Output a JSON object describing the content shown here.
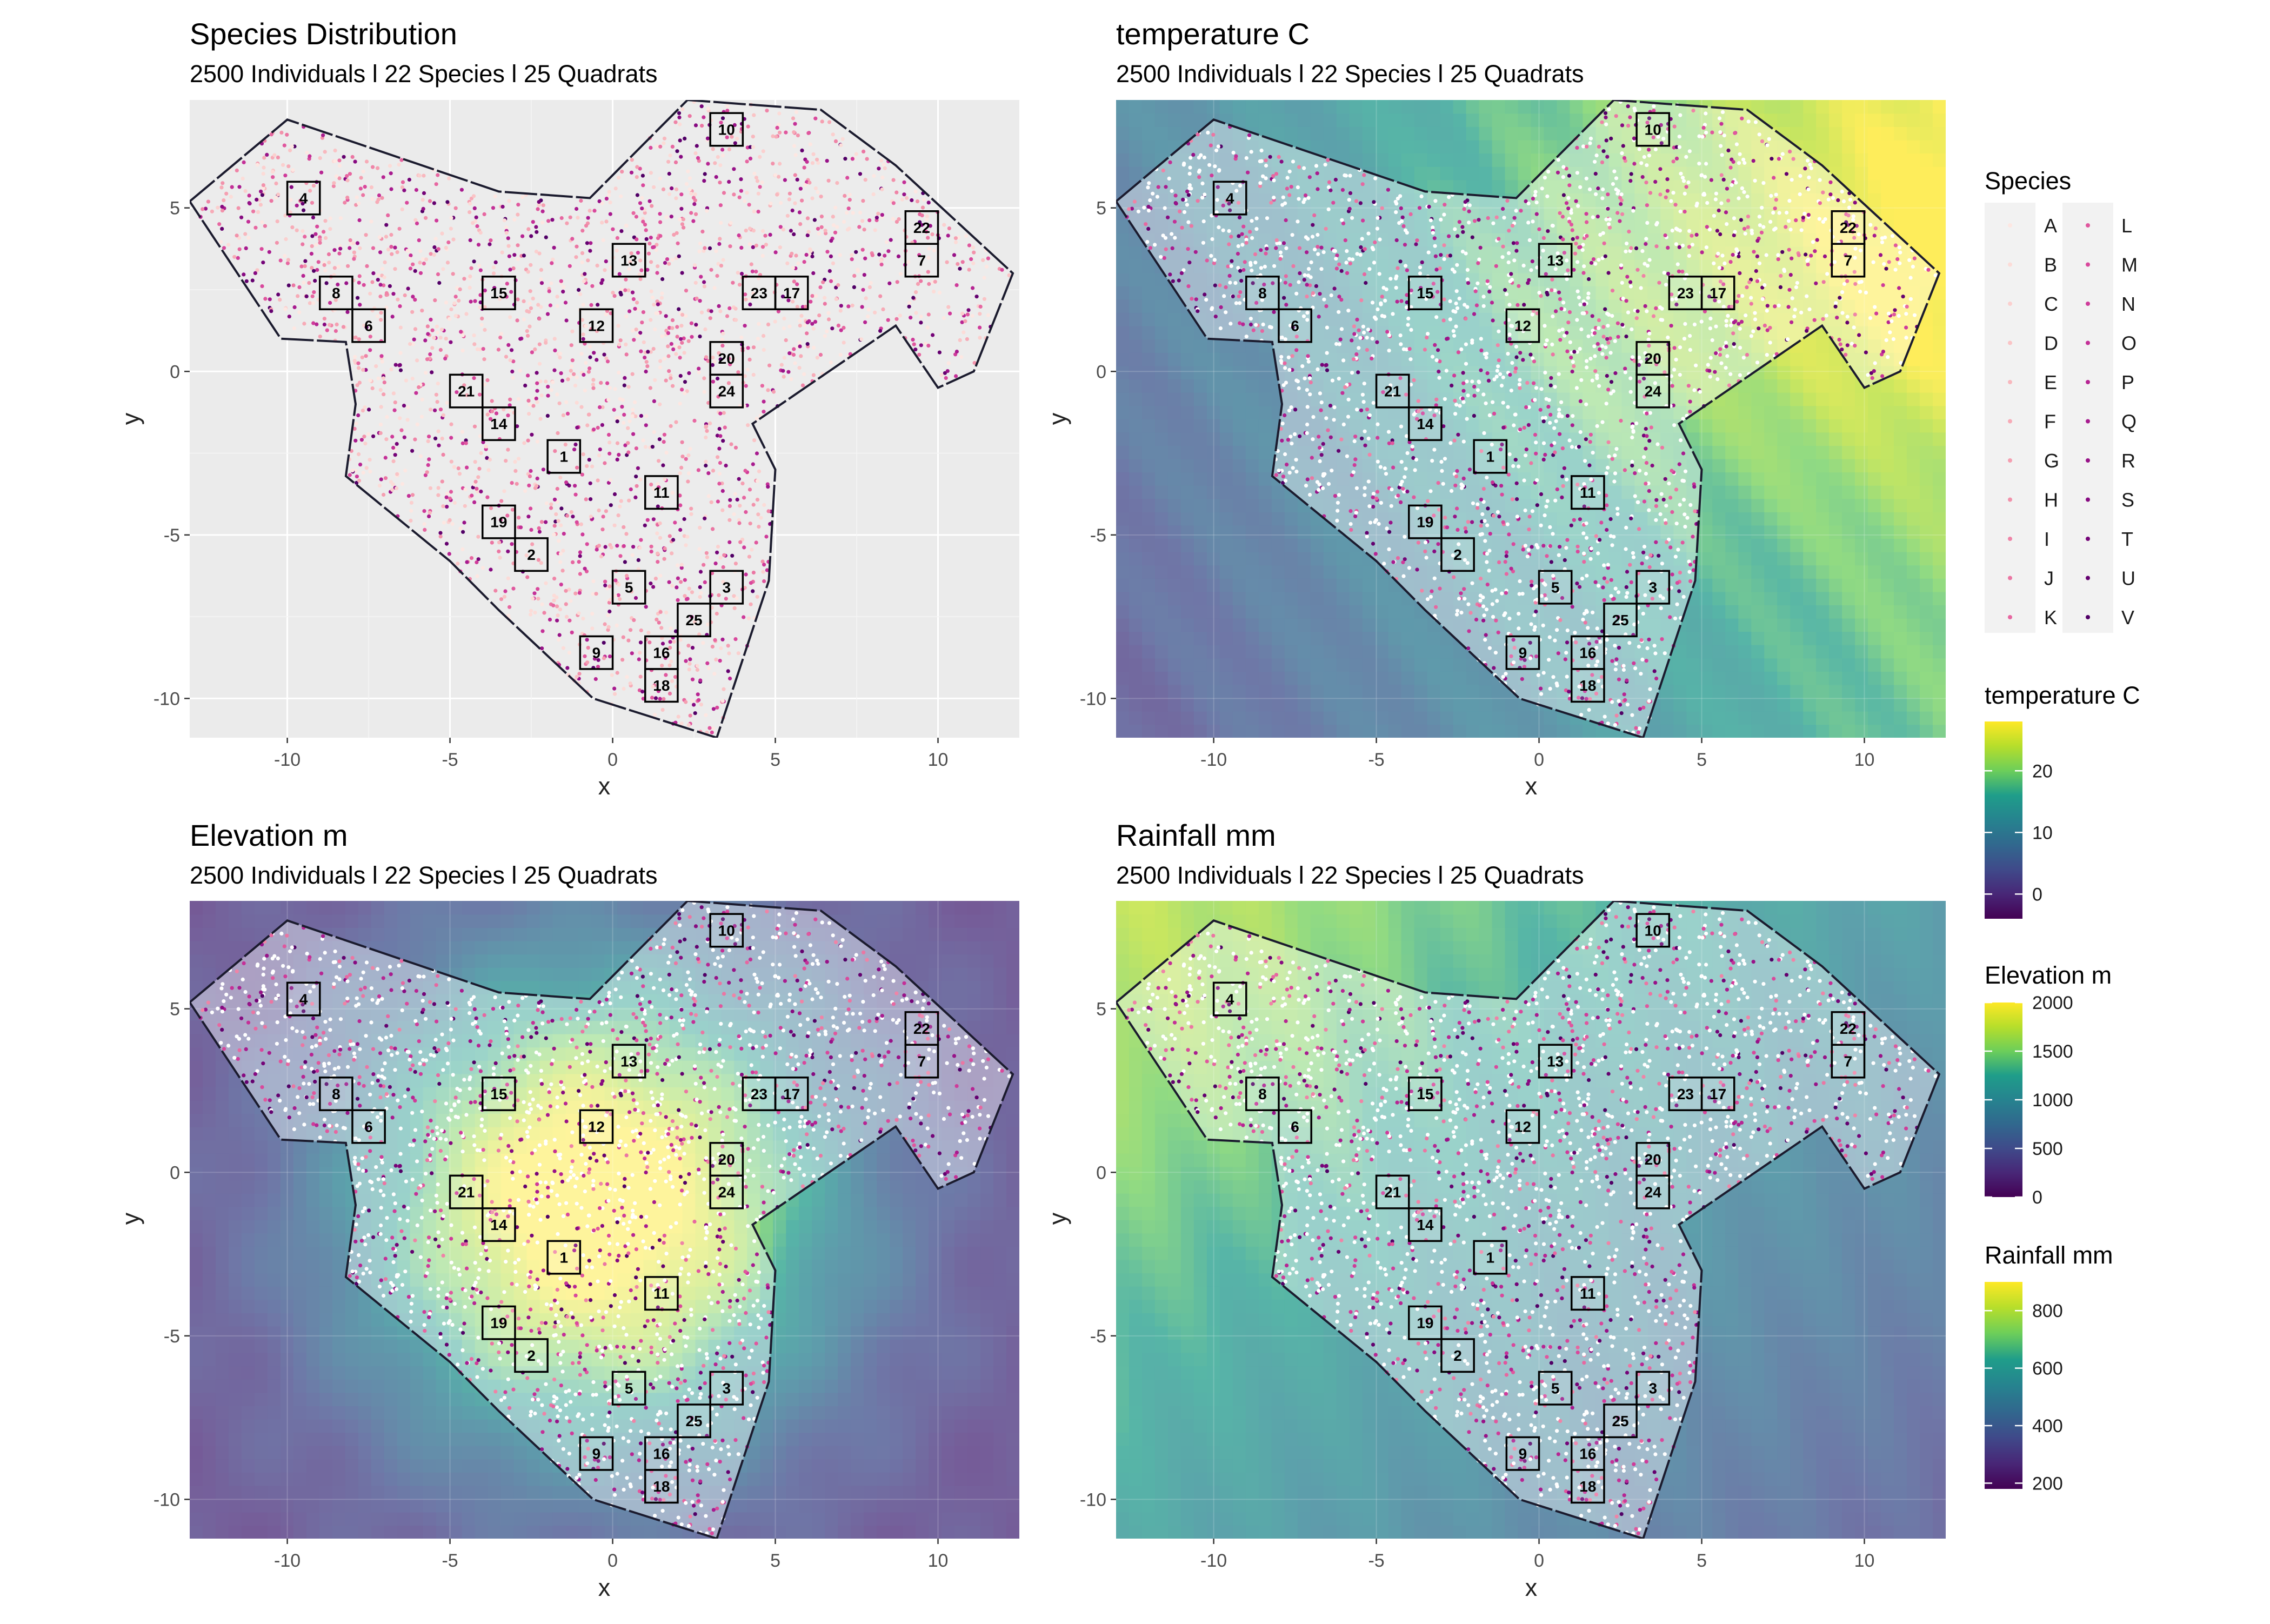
{
  "palette": {
    "species": [
      "#fde7e2",
      "#fcdcd8",
      "#fbd0cf",
      "#fac4c6",
      "#f8b8be",
      "#f7abb7",
      "#f59fb1",
      "#f292ab",
      "#ef84a7",
      "#eb76a3",
      "#e767a1",
      "#e0579e",
      "#d9489c",
      "#cf3b9a",
      "#c43097",
      "#b72593",
      "#a81b8f",
      "#981288",
      "#870a81",
      "#750478",
      "#64006f",
      "#510066"
    ],
    "viridis": [
      "#440154",
      "#482777",
      "#3f4a8a",
      "#31688e",
      "#26838f",
      "#1f9d8a",
      "#6cce5a",
      "#b6de2b",
      "#fee825"
    ],
    "panel_bg": "#ebebeb",
    "polygon_fill": "#ececec",
    "boundary": "#1b1b2e"
  },
  "legends": {
    "species": {
      "title": "Species",
      "labels": [
        "A",
        "B",
        "C",
        "D",
        "E",
        "F",
        "G",
        "H",
        "I",
        "J",
        "K",
        "L",
        "M",
        "N",
        "O",
        "P",
        "Q",
        "R",
        "S",
        "T",
        "U",
        "V"
      ]
    },
    "temperature": {
      "title": "temperature C",
      "range": [
        -4,
        28
      ],
      "ticks": [
        0,
        10,
        20
      ]
    },
    "elevation": {
      "title": "Elevation m",
      "range": [
        0,
        2000
      ],
      "ticks": [
        0,
        500,
        1000,
        1500,
        2000
      ]
    },
    "rainfall": {
      "title": "Rainfall mm",
      "range": [
        180,
        900
      ],
      "ticks": [
        200,
        400,
        600,
        800
      ]
    }
  },
  "chart_data": [
    {
      "type": "scatter",
      "title": "Species Distribution",
      "subtitle": "2500 Individuals l 22 Species l 25 Quadrats",
      "xlabel": "x",
      "ylabel": "y",
      "xlim": [
        -13,
        12.5
      ],
      "ylim": [
        -11.2,
        8.3
      ],
      "xticks": [
        -10,
        -5,
        0,
        5,
        10
      ],
      "yticks": [
        -10,
        -5,
        0,
        5
      ],
      "grid": true,
      "background": "grey"
    },
    {
      "type": "heatmap",
      "title": "temperature C",
      "subtitle": "2500 Individuals l 22 Species l 25 Quadrats",
      "xlabel": "x",
      "ylabel": "y",
      "xlim": [
        -13,
        12.5
      ],
      "ylim": [
        -11.2,
        8.3
      ],
      "xticks": [
        -10,
        -5,
        0,
        5,
        10
      ],
      "yticks": [
        -10,
        -5,
        0,
        5
      ],
      "field": "temperature",
      "legend": "temperature"
    },
    {
      "type": "heatmap",
      "title": "Elevation m",
      "subtitle": "2500 Individuals l 22 Species l 25 Quadrats",
      "xlabel": "x",
      "ylabel": "y",
      "xlim": [
        -13,
        12.5
      ],
      "ylim": [
        -11.2,
        8.3
      ],
      "xticks": [
        -10,
        -5,
        0,
        5,
        10
      ],
      "yticks": [
        -10,
        -5,
        0,
        5
      ],
      "field": "elevation",
      "legend": "elevation"
    },
    {
      "type": "heatmap",
      "title": "Rainfall mm",
      "subtitle": "2500 Individuals l 22 Species l 25 Quadrats",
      "xlabel": "x",
      "ylabel": "y",
      "xlim": [
        -13,
        12.5
      ],
      "ylim": [
        -11.2,
        8.3
      ],
      "xticks": [
        -10,
        -5,
        0,
        5,
        10
      ],
      "yticks": [
        -10,
        -5,
        0,
        5
      ],
      "field": "rainfall",
      "legend": "rainfall"
    }
  ],
  "study_area": {
    "boundary": [
      [
        -13,
        5.2
      ],
      [
        -10,
        7.7
      ],
      [
        -3.5,
        5.5
      ],
      [
        -0.7,
        5.3
      ],
      [
        2.3,
        8.3
      ],
      [
        6.4,
        8
      ],
      [
        8.7,
        6.3
      ],
      [
        12.3,
        3
      ],
      [
        11.1,
        0
      ],
      [
        10,
        -0.5
      ],
      [
        8.7,
        1.4
      ],
      [
        4.3,
        -1.6
      ],
      [
        5,
        -3
      ],
      [
        4.8,
        -6.4
      ],
      [
        3.2,
        -11.2
      ],
      [
        -0.6,
        -10
      ],
      [
        -3.5,
        -7.3
      ],
      [
        -5,
        -5.8
      ],
      [
        -8.2,
        -3.2
      ],
      [
        -7.9,
        -1
      ],
      [
        -8.2,
        0.9
      ],
      [
        -10.2,
        1
      ],
      [
        -13,
        5.2
      ]
    ],
    "points_total": 2500,
    "quadrats": [
      {
        "id": "1",
        "x": -1.5,
        "y": -2.6
      },
      {
        "id": "2",
        "x": -2.5,
        "y": -5.6
      },
      {
        "id": "3",
        "x": 3.5,
        "y": -6.6
      },
      {
        "id": "4",
        "x": -9.5,
        "y": 5.3
      },
      {
        "id": "5",
        "x": 0.5,
        "y": -6.6
      },
      {
        "id": "6",
        "x": -7.5,
        "y": 1.4
      },
      {
        "id": "7",
        "x": 9.5,
        "y": 3.4
      },
      {
        "id": "8",
        "x": -8.5,
        "y": 2.4
      },
      {
        "id": "9",
        "x": -0.5,
        "y": -8.6
      },
      {
        "id": "10",
        "x": 3.5,
        "y": 7.4
      },
      {
        "id": "11",
        "x": 1.5,
        "y": -3.7
      },
      {
        "id": "12",
        "x": -0.5,
        "y": 1.4
      },
      {
        "id": "13",
        "x": 0.5,
        "y": 3.4
      },
      {
        "id": "14",
        "x": -3.5,
        "y": -1.6
      },
      {
        "id": "15",
        "x": -3.5,
        "y": 2.4
      },
      {
        "id": "16",
        "x": 1.5,
        "y": -8.6
      },
      {
        "id": "17",
        "x": 5.5,
        "y": 2.4
      },
      {
        "id": "18",
        "x": 1.5,
        "y": -9.6
      },
      {
        "id": "19",
        "x": -3.5,
        "y": -4.6
      },
      {
        "id": "20",
        "x": 3.5,
        "y": 0.4
      },
      {
        "id": "21",
        "x": -4.5,
        "y": -0.6
      },
      {
        "id": "22",
        "x": 9.5,
        "y": 4.4
      },
      {
        "id": "23",
        "x": 4.5,
        "y": 2.4
      },
      {
        "id": "24",
        "x": 3.5,
        "y": -0.6
      },
      {
        "id": "25",
        "x": 2.5,
        "y": -7.6
      }
    ]
  }
}
